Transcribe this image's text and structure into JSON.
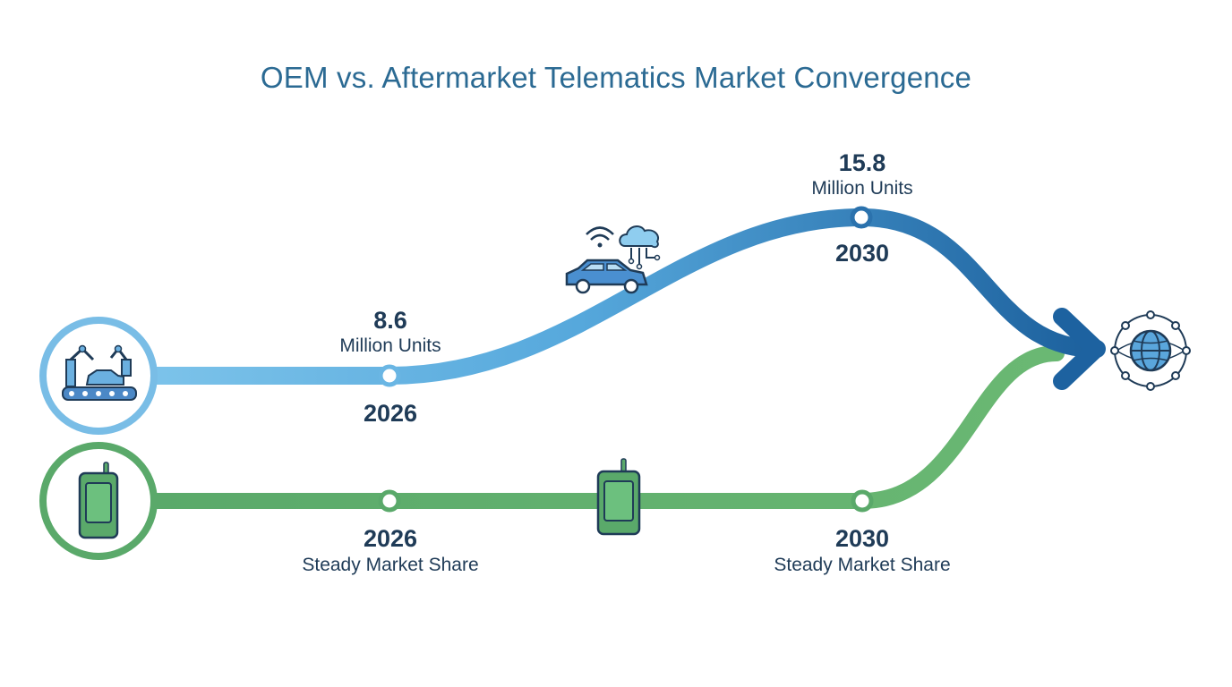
{
  "title": "OEM vs. Aftermarket Telematics Market Convergence",
  "oem": {
    "color_light": "#6cbbe6",
    "color_dark": "#1d6aa5",
    "icon": "factory-robot-car-assembly-icon",
    "connected_car_icon": "connected-car-cloud-icon",
    "milestones": [
      {
        "year": "2026",
        "value": "8.6",
        "unit": "Million Units"
      },
      {
        "year": "2030",
        "value": "15.8",
        "unit": "Million Units"
      }
    ]
  },
  "aftermarket": {
    "color": "#5aa96a",
    "icon": "aftermarket-device-icon",
    "device_icon": "telematics-device-icon",
    "milestones": [
      {
        "year": "2026",
        "label": "Steady Market Share"
      },
      {
        "year": "2030",
        "label": "Steady Market Share"
      }
    ]
  },
  "convergence": {
    "icon": "global-network-icon"
  }
}
